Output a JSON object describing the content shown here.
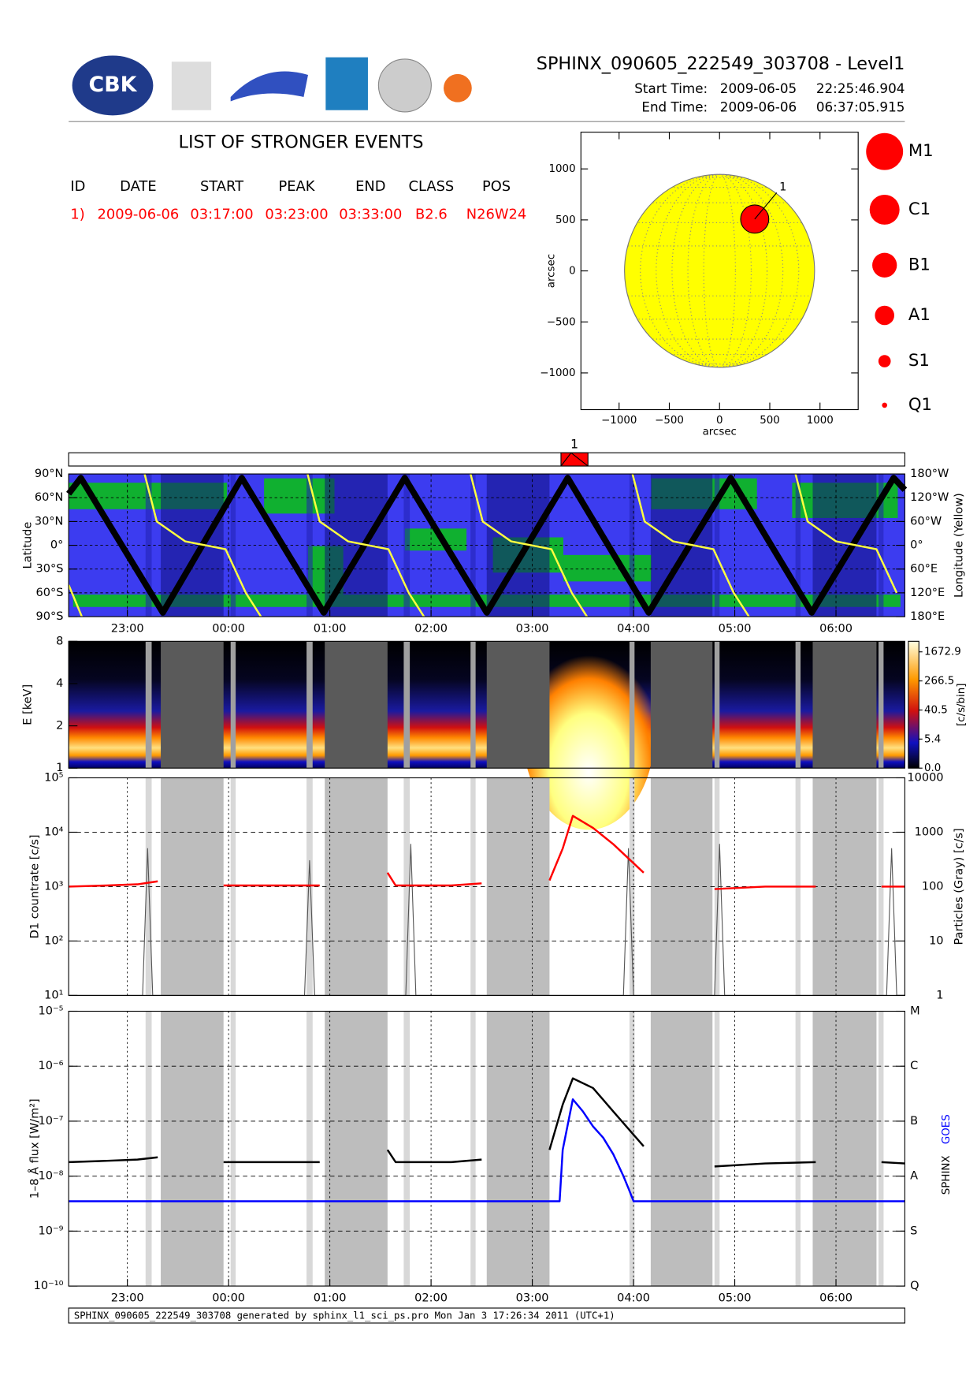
{
  "header": {
    "title": "SPHINX_090605_222549_303708 - Level1",
    "start_label": "Start Time:",
    "start_date": "2009-06-05",
    "start_time": "22:25:46.904",
    "end_label": "End Time:",
    "end_date": "2009-06-06",
    "end_time": "06:37:05.915",
    "logo_text": "CBK"
  },
  "events": {
    "title": "LIST OF STRONGER EVENTS",
    "columns": [
      "ID",
      "DATE",
      "START",
      "PEAK",
      "END",
      "CLASS",
      "POS"
    ],
    "rows": [
      [
        "1)",
        "2009-06-06",
        "03:17:00",
        "03:23:00",
        "03:33:00",
        "B2.6",
        "N26W24"
      ]
    ]
  },
  "class_legend": [
    "M1",
    "C1",
    "B1",
    "A1",
    "S1",
    "Q1"
  ],
  "observation_gaps": {
    "dark": [
      [
        -0.67,
        -0.05
      ],
      [
        0.95,
        1.57
      ],
      [
        2.55,
        3.17
      ],
      [
        4.17,
        4.78
      ],
      [
        5.77,
        6.4
      ]
    ],
    "light": [
      [
        -0.82,
        -0.76
      ],
      [
        0.02,
        0.07
      ],
      [
        0.77,
        0.83
      ],
      [
        1.73,
        1.79
      ],
      [
        2.39,
        2.44
      ],
      [
        3.96,
        4.01
      ],
      [
        4.8,
        4.85
      ],
      [
        5.6,
        5.65
      ],
      [
        6.42,
        6.47
      ]
    ]
  },
  "footer": "SPHINX_090605_222549_303708 generated by sphinx_l1_sci_ps.pro Mon Jan  3 17:26:34 2011 (UTC+1)",
  "chart_data": [
    {
      "type": "scatter",
      "xlabel": "arcsec",
      "ylabel": "arcsec",
      "xlim": [
        -1380,
        1380
      ],
      "ylim": [
        -1360,
        1360
      ],
      "xticks": [
        {
          "value": -1000,
          "label": "−1000"
        },
        {
          "value": -500,
          "label": "−500"
        },
        0,
        500,
        1000
      ],
      "yticks": [
        {
          "value": -1000,
          "label": "−1000"
        },
        {
          "value": -500,
          "label": "−500"
        },
        0,
        500,
        1000
      ],
      "disk_radius": 946,
      "disk_color": "#ffff00",
      "color": "#ff0000",
      "x": [
        350
      ],
      "values": [
        508
      ],
      "point_labels": [
        "1"
      ]
    },
    {
      "type": "line",
      "ylabel": "Latitude",
      "y2label": "Longitude (Yellow)",
      "xlim": [
        -1.58,
        6.68
      ],
      "ylim": [
        -90,
        90
      ],
      "xticks": [
        {
          "value": -1,
          "label": "23:00"
        },
        {
          "value": 0,
          "label": "00:00"
        },
        {
          "value": 1,
          "label": "01:00"
        },
        {
          "value": 2,
          "label": "02:00"
        },
        {
          "value": 3,
          "label": "03:00"
        },
        {
          "value": 4,
          "label": "04:00"
        },
        {
          "value": 5,
          "label": "05:00"
        },
        {
          "value": 6,
          "label": "06:00"
        }
      ],
      "yticks": [
        {
          "value": 90,
          "label": "90°N"
        },
        {
          "value": 60,
          "label": "60°N"
        },
        {
          "value": 30,
          "label": "30°N"
        },
        {
          "value": 0,
          "label": "0°"
        },
        {
          "value": -30,
          "label": "30°S"
        },
        {
          "value": -60,
          "label": "60°S"
        },
        {
          "value": -90,
          "label": "90°S"
        }
      ],
      "y2lim": [
        -180,
        180
      ],
      "y2ticks": [
        {
          "value": 180,
          "label": "180°W"
        },
        {
          "value": 120,
          "label": "120°W"
        },
        {
          "value": 60,
          "label": "60°W"
        },
        {
          "value": 0,
          "label": "0°"
        },
        {
          "value": -60,
          "label": "60°E"
        },
        {
          "value": -120,
          "label": "120°E"
        },
        {
          "value": -180,
          "label": "180°E"
        }
      ],
      "series": [
        {
          "color": "#000000",
          "x": [
            -1.58,
            -1.46,
            -0.65,
            0.13,
            0.94,
            1.74,
            2.55,
            3.35,
            4.15,
            4.96,
            5.76,
            6.57,
            6.68
          ],
          "values": [
            65,
            85,
            -85,
            85,
            -85,
            85,
            -85,
            85,
            -85,
            85,
            -85,
            85,
            70
          ]
        },
        {
          "color": "#ffff40",
          "axis": "y2",
          "x": [
            -1.58,
            -1.45,
            -1.2,
            -0.83,
            -0.71,
            -0.43,
            -0.03,
            0.17,
            0.32,
            0.5,
            0.78,
            0.9,
            1.18,
            1.58,
            1.78,
            1.93,
            2.1,
            2.39,
            2.51,
            2.79,
            3.19,
            3.39,
            3.54,
            3.7,
            3.99,
            4.11,
            4.39,
            4.79,
            4.99,
            5.14,
            5.3,
            5.6,
            5.72,
            6.0,
            6.4,
            6.6
          ],
          "values": [
            -100,
            -180,
            null,
            180,
            60,
            10,
            -10,
            -120,
            -180,
            null,
            180,
            60,
            10,
            -10,
            -120,
            -180,
            null,
            180,
            60,
            10,
            -10,
            -120,
            -180,
            null,
            180,
            60,
            10,
            -10,
            -120,
            -180,
            null,
            180,
            60,
            10,
            -10,
            -120
          ]
        }
      ]
    },
    {
      "type": "heatmap",
      "ylabel": "E [keV]",
      "colorbar_label": "[c/s/bin]",
      "xlim": [
        -1.58,
        6.68
      ],
      "ylim": [
        1,
        8
      ],
      "ylog": true,
      "yticks": [
        1,
        2,
        4,
        8
      ],
      "cticks": [
        1672.9,
        266.5,
        40.5,
        5.4,
        {
          "value": 0,
          "label": "0.0"
        }
      ]
    },
    {
      "type": "line",
      "ylabel": "D1 countrate [c/s]",
      "y2label": "Particles (Gray) [c/s]",
      "xlim": [
        -1.58,
        6.68
      ],
      "ylog": true,
      "ylim": [
        10,
        100000
      ],
      "yticks": [
        {
          "value": 10,
          "label": "10¹"
        },
        {
          "value": 100,
          "label": "10²"
        },
        {
          "value": 1000,
          "label": "10³"
        },
        {
          "value": 10000,
          "label": "10⁴"
        },
        {
          "value": 100000,
          "label": "10⁵"
        }
      ],
      "y2lim": [
        1,
        10000
      ],
      "y2ticks": [
        1,
        10,
        100,
        1000,
        10000
      ],
      "series": [
        {
          "color": "#ff0000",
          "x": [
            -1.58,
            -1.2,
            -0.9,
            -0.7,
            -0.65,
            -0.05,
            0.5,
            0.9,
            0.95,
            1.57,
            1.65,
            2.2,
            2.5,
            2.55,
            3.17,
            3.3,
            3.4,
            3.6,
            3.8,
            4.1,
            4.15,
            4.8,
            5.3,
            5.8,
            5.85,
            6.45,
            6.68
          ],
          "values": [
            1000,
            1050,
            1100,
            1250,
            null,
            1050,
            1050,
            1050,
            null,
            1800,
            1050,
            1050,
            1150,
            null,
            1300,
            5000,
            20000,
            12000,
            6000,
            1800,
            null,
            900,
            1000,
            1000,
            null,
            1000,
            1000
          ]
        },
        {
          "color": "#555555",
          "axis": "y2",
          "x": [
            -1.58,
            -0.85,
            -0.8,
            -0.75,
            0.75,
            0.8,
            0.85,
            1.75,
            1.8,
            1.85,
            3.9,
            3.95,
            4.0,
            4.8,
            4.85,
            4.9,
            6.5,
            6.55,
            6.6,
            6.68
          ],
          "values": [
            1,
            1,
            500,
            1,
            1,
            300,
            1,
            1,
            600,
            1,
            1,
            500,
            1,
            1,
            600,
            1,
            1,
            500,
            1,
            1
          ]
        }
      ]
    },
    {
      "type": "line",
      "ylabel": "1–8 Å flux [W/m²]",
      "xlim": [
        -1.58,
        6.68
      ],
      "ylog": true,
      "ylim": [
        1e-10,
        1e-05
      ],
      "xticks": [
        {
          "value": -1,
          "label": "23:00"
        },
        {
          "value": 0,
          "label": "00:00"
        },
        {
          "value": 1,
          "label": "01:00"
        },
        {
          "value": 2,
          "label": "02:00"
        },
        {
          "value": 3,
          "label": "03:00"
        },
        {
          "value": 4,
          "label": "04:00"
        },
        {
          "value": 5,
          "label": "05:00"
        },
        {
          "value": 6,
          "label": "06:00"
        }
      ],
      "yticks": [
        {
          "value": 1e-10,
          "label": "10⁻¹⁰"
        },
        {
          "value": 1e-09,
          "label": "10⁻⁹"
        },
        {
          "value": 1e-08,
          "label": "10⁻⁸"
        },
        {
          "value": 1e-07,
          "label": "10⁻⁷"
        },
        {
          "value": 1e-06,
          "label": "10⁻⁶"
        },
        {
          "value": 1e-05,
          "label": "10⁻⁵"
        }
      ],
      "y2lim": [
        1e-10,
        1e-05
      ],
      "y2ticks": [
        {
          "value": 1e-05,
          "label": "M"
        },
        {
          "value": 1e-06,
          "label": "C"
        },
        {
          "value": 1e-07,
          "label": "B"
        },
        {
          "value": 1e-08,
          "label": "A"
        },
        {
          "value": 1e-09,
          "label": "S"
        },
        {
          "value": 1e-10,
          "label": "Q"
        }
      ],
      "series": [
        {
          "name": "SPHINX",
          "color": "#000000",
          "x": [
            -1.58,
            -1.2,
            -0.9,
            -0.7,
            -0.65,
            -0.05,
            0.5,
            0.9,
            0.95,
            1.57,
            1.65,
            2.2,
            2.5,
            2.55,
            3.17,
            3.3,
            3.4,
            3.6,
            3.8,
            4.1,
            4.15,
            4.8,
            5.3,
            5.8,
            5.85,
            6.45,
            6.68
          ],
          "values": [
            1.8e-08,
            1.9e-08,
            2e-08,
            2.2e-08,
            null,
            1.8e-08,
            1.8e-08,
            1.8e-08,
            null,
            3e-08,
            1.8e-08,
            1.8e-08,
            2e-08,
            null,
            3e-08,
            2e-07,
            6e-07,
            4e-07,
            1.5e-07,
            3.5e-08,
            null,
            1.5e-08,
            1.7e-08,
            1.8e-08,
            null,
            1.8e-08,
            1.7e-08
          ]
        },
        {
          "name": "GOES",
          "color": "#0000ff",
          "x": [
            -1.58,
            3.27,
            3.3,
            3.4,
            3.5,
            3.6,
            3.7,
            3.8,
            3.9,
            3.95,
            4.0,
            6.68
          ],
          "values": [
            3.5e-09,
            3.5e-09,
            3e-08,
            2.5e-07,
            1.5e-07,
            8e-08,
            5e-08,
            2.5e-08,
            1e-08,
            6e-09,
            3.5e-09,
            3.5e-09
          ]
        }
      ]
    }
  ]
}
